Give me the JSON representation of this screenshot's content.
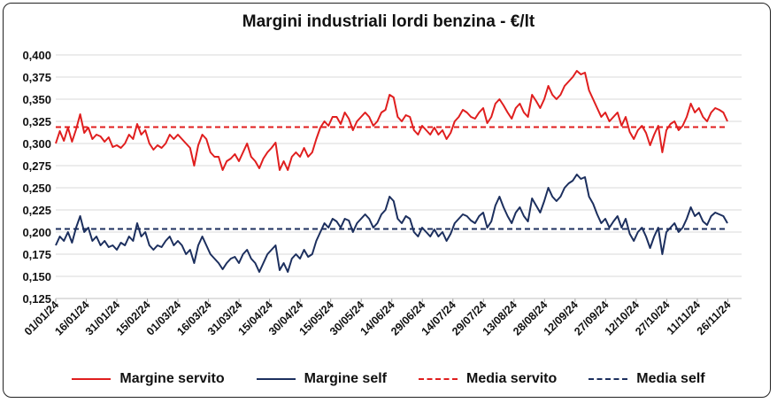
{
  "chart_data": {
    "type": "line",
    "title": "Margini industriali lordi benzina - €/lt",
    "xlabel": "",
    "ylabel": "",
    "ylim": [
      0.125,
      0.4
    ],
    "yticks": [
      "0,125",
      "0,150",
      "0,175",
      "0,200",
      "0,225",
      "0,250",
      "0,275",
      "0,300",
      "0,325",
      "0,350",
      "0,375",
      "0,400"
    ],
    "grid": true,
    "legend_position": "bottom",
    "xticks": [
      "01/01/24",
      "16/01/24",
      "31/01/24",
      "15/02/24",
      "01/03/24",
      "16/03/24",
      "31/03/24",
      "15/04/24",
      "30/04/24",
      "15/05/24",
      "30/05/24",
      "14/06/24",
      "29/06/24",
      "14/07/24",
      "29/07/24",
      "13/08/24",
      "28/08/24",
      "12/09/24",
      "27/09/24",
      "12/10/24",
      "27/10/24",
      "11/11/24",
      "26/11/24"
    ],
    "x_start": "2024-01-01",
    "series": [
      {
        "name": "Margine servito",
        "color": "#e01e1e",
        "style": "solid",
        "values": [
          0.3,
          0.314,
          0.303,
          0.318,
          0.302,
          0.316,
          0.333,
          0.312,
          0.318,
          0.305,
          0.31,
          0.308,
          0.302,
          0.307,
          0.296,
          0.298,
          0.295,
          0.3,
          0.31,
          0.305,
          0.322,
          0.31,
          0.315,
          0.3,
          0.293,
          0.298,
          0.295,
          0.3,
          0.31,
          0.305,
          0.31,
          0.305,
          0.3,
          0.295,
          0.275,
          0.298,
          0.31,
          0.305,
          0.29,
          0.285,
          0.285,
          0.27,
          0.28,
          0.283,
          0.288,
          0.28,
          0.29,
          0.3,
          0.285,
          0.28,
          0.272,
          0.283,
          0.29,
          0.295,
          0.301,
          0.27,
          0.28,
          0.27,
          0.285,
          0.29,
          0.285,
          0.295,
          0.285,
          0.29,
          0.305,
          0.318,
          0.325,
          0.32,
          0.33,
          0.33,
          0.322,
          0.335,
          0.328,
          0.315,
          0.325,
          0.33,
          0.335,
          0.33,
          0.32,
          0.325,
          0.335,
          0.338,
          0.355,
          0.352,
          0.33,
          0.325,
          0.332,
          0.33,
          0.315,
          0.31,
          0.32,
          0.315,
          0.31,
          0.318,
          0.31,
          0.315,
          0.305,
          0.312,
          0.325,
          0.33,
          0.338,
          0.335,
          0.33,
          0.328,
          0.335,
          0.34,
          0.323,
          0.33,
          0.345,
          0.35,
          0.343,
          0.335,
          0.328,
          0.34,
          0.345,
          0.335,
          0.33,
          0.355,
          0.348,
          0.34,
          0.35,
          0.365,
          0.355,
          0.35,
          0.355,
          0.365,
          0.37,
          0.375,
          0.382,
          0.378,
          0.38,
          0.36,
          0.35,
          0.34,
          0.33,
          0.335,
          0.325,
          0.33,
          0.335,
          0.32,
          0.33,
          0.313,
          0.305,
          0.315,
          0.32,
          0.312,
          0.298,
          0.31,
          0.32,
          0.29,
          0.315,
          0.322,
          0.325,
          0.315,
          0.32,
          0.33,
          0.345,
          0.335,
          0.34,
          0.33,
          0.325,
          0.335,
          0.34,
          0.338,
          0.335,
          0.325
        ]
      },
      {
        "name": "Margine self",
        "color": "#1c2f5e",
        "style": "solid",
        "values": [
          0.185,
          0.195,
          0.19,
          0.2,
          0.188,
          0.205,
          0.218,
          0.2,
          0.205,
          0.19,
          0.195,
          0.185,
          0.19,
          0.183,
          0.185,
          0.18,
          0.188,
          0.185,
          0.195,
          0.19,
          0.21,
          0.195,
          0.2,
          0.185,
          0.18,
          0.185,
          0.183,
          0.19,
          0.195,
          0.185,
          0.19,
          0.185,
          0.175,
          0.18,
          0.165,
          0.185,
          0.195,
          0.185,
          0.175,
          0.17,
          0.165,
          0.158,
          0.165,
          0.17,
          0.172,
          0.165,
          0.175,
          0.18,
          0.17,
          0.165,
          0.155,
          0.165,
          0.175,
          0.18,
          0.185,
          0.157,
          0.165,
          0.155,
          0.17,
          0.175,
          0.17,
          0.18,
          0.172,
          0.175,
          0.19,
          0.2,
          0.21,
          0.205,
          0.215,
          0.212,
          0.205,
          0.215,
          0.213,
          0.2,
          0.21,
          0.215,
          0.22,
          0.215,
          0.205,
          0.21,
          0.22,
          0.225,
          0.24,
          0.235,
          0.215,
          0.21,
          0.218,
          0.215,
          0.2,
          0.195,
          0.205,
          0.2,
          0.195,
          0.203,
          0.195,
          0.2,
          0.19,
          0.198,
          0.21,
          0.215,
          0.22,
          0.218,
          0.213,
          0.21,
          0.218,
          0.222,
          0.205,
          0.212,
          0.23,
          0.24,
          0.228,
          0.218,
          0.21,
          0.222,
          0.228,
          0.218,
          0.212,
          0.238,
          0.23,
          0.222,
          0.235,
          0.25,
          0.24,
          0.235,
          0.24,
          0.25,
          0.255,
          0.258,
          0.265,
          0.26,
          0.262,
          0.24,
          0.232,
          0.22,
          0.21,
          0.215,
          0.205,
          0.212,
          0.218,
          0.205,
          0.215,
          0.198,
          0.19,
          0.2,
          0.205,
          0.195,
          0.182,
          0.195,
          0.205,
          0.175,
          0.2,
          0.205,
          0.21,
          0.2,
          0.205,
          0.215,
          0.228,
          0.218,
          0.222,
          0.212,
          0.208,
          0.218,
          0.222,
          0.22,
          0.218,
          0.21
        ]
      },
      {
        "name": "Media servito",
        "color": "#e01e1e",
        "style": "dashed",
        "constant": 0.3185
      },
      {
        "name": "Media self",
        "color": "#1c2f5e",
        "style": "dashed",
        "constant": 0.2035
      }
    ]
  }
}
